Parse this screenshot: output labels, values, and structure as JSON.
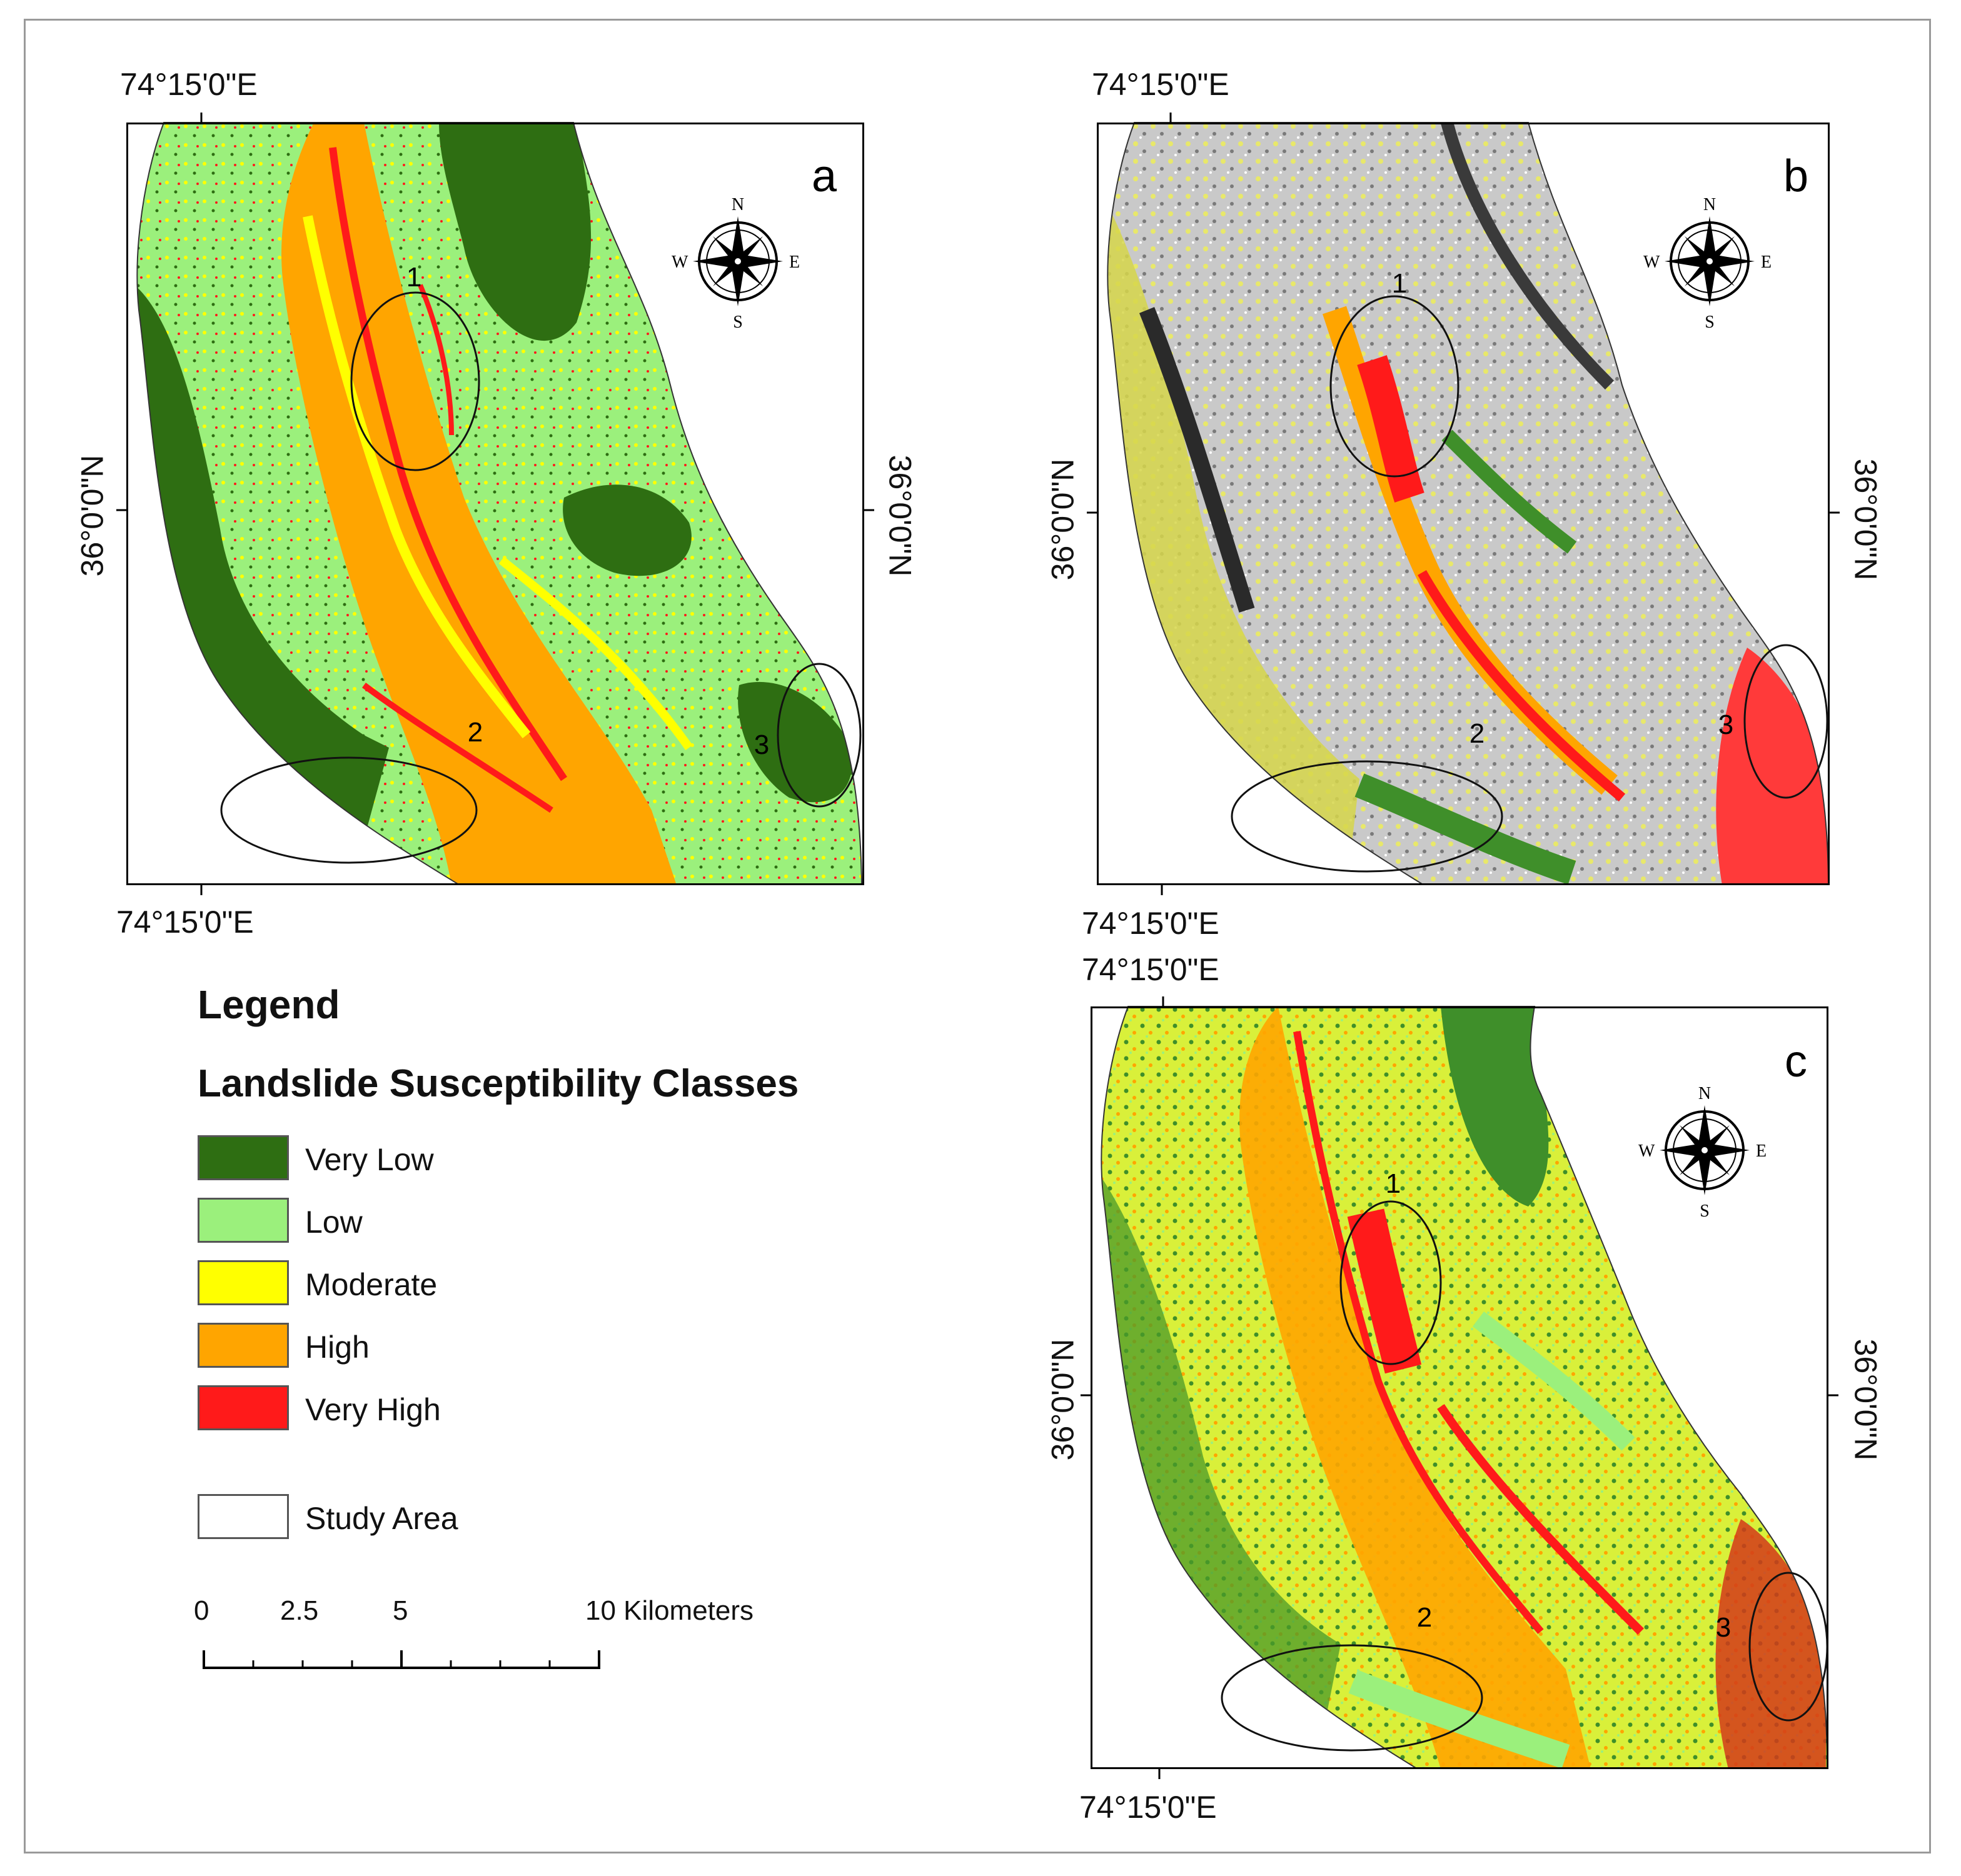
{
  "panels": [
    {
      "id": "a",
      "letter": "a",
      "lon_top": "74°15'0\"E",
      "lon_bottom": "74°15'0\"E",
      "lat_left": "36°0'0\"N",
      "lat_right": "36°0'0\"N",
      "zones": [
        "1",
        "2",
        "3"
      ],
      "compass": {
        "n": "N",
        "s": "S",
        "e": "E",
        "w": "W"
      }
    },
    {
      "id": "b",
      "letter": "b",
      "lon_top": "74°15'0\"E",
      "lon_bottom": "74°15'0\"E",
      "lat_left": "36°0'0\"N",
      "lat_right": "36°0'0\"N",
      "zones": [
        "1",
        "2",
        "3"
      ],
      "compass": {
        "n": "N",
        "s": "S",
        "e": "E",
        "w": "W"
      }
    },
    {
      "id": "c",
      "letter": "c",
      "lon_top": "74°15'0\"E",
      "lon_bottom": "74°15'0\"E",
      "lat_left": "36°0'0\"N",
      "lat_right": "36°0'0\"N",
      "zones": [
        "1",
        "2",
        "3"
      ],
      "compass": {
        "n": "N",
        "s": "S",
        "e": "E",
        "w": "W"
      }
    }
  ],
  "legend": {
    "title": "Legend",
    "subtitle": "Landslide Susceptibility Classes",
    "classes": [
      {
        "label": "Very Low",
        "color": "#2e6e12"
      },
      {
        "label": "Low",
        "color": "#9bf07c"
      },
      {
        "label": "Moderate",
        "color": "#ffff00"
      },
      {
        "label": "High",
        "color": "#ffa500"
      },
      {
        "label": "Very High",
        "color": "#ff1a1a"
      }
    ],
    "study_area_label": "Study Area"
  },
  "scale_bar": {
    "ticks": [
      "0",
      "2.5",
      "5",
      "10 Kilometers"
    ],
    "tick_values_km": [
      0,
      2.5,
      5,
      10
    ]
  }
}
